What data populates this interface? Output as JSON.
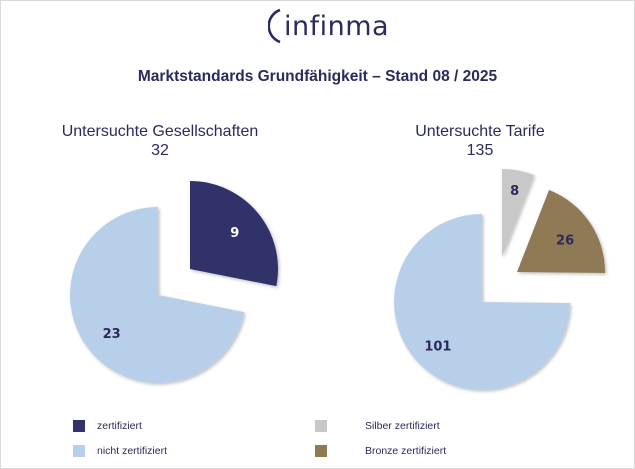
{
  "logo": {
    "text": "infinma"
  },
  "title": "Marktstandards Grundfähigkeit – Stand 08 / 2025",
  "charts": [
    {
      "subtitle": "Untersuchte Gesellschaften",
      "total": "32"
    },
    {
      "subtitle": "Untersuchte Tarife",
      "total": "135"
    }
  ],
  "legend": [
    {
      "label": "zertifiziert",
      "color": "#33336b"
    },
    {
      "label": "nicht zertifiziert",
      "color": "#b8cfe9"
    },
    {
      "label": "Silber zertifiziert",
      "color": "#c8c8c8"
    },
    {
      "label": "Bronze zertifiziert",
      "color": "#8f7a54"
    }
  ],
  "chart_data": [
    {
      "type": "pie",
      "title": "Untersuchte Gesellschaften",
      "total": 32,
      "categories": [
        "zertifiziert",
        "nicht zertifiziert"
      ],
      "values": [
        9,
        23
      ],
      "colors": [
        "#33336b",
        "#b8cfe9"
      ],
      "exploded": [
        "zertifiziert"
      ],
      "labels": [
        "9",
        "23"
      ]
    },
    {
      "type": "pie",
      "title": "Untersuchte Tarife",
      "total": 135,
      "categories": [
        "Silber zertifiziert",
        "Bronze zertifiziert",
        "nicht zertifiziert"
      ],
      "values": [
        8,
        26,
        101
      ],
      "colors": [
        "#c8c8c8",
        "#8f7a54",
        "#b8cfe9"
      ],
      "exploded": [
        "Silber zertifiziert",
        "Bronze zertifiziert"
      ],
      "labels": [
        "8",
        "26",
        "101"
      ]
    }
  ]
}
